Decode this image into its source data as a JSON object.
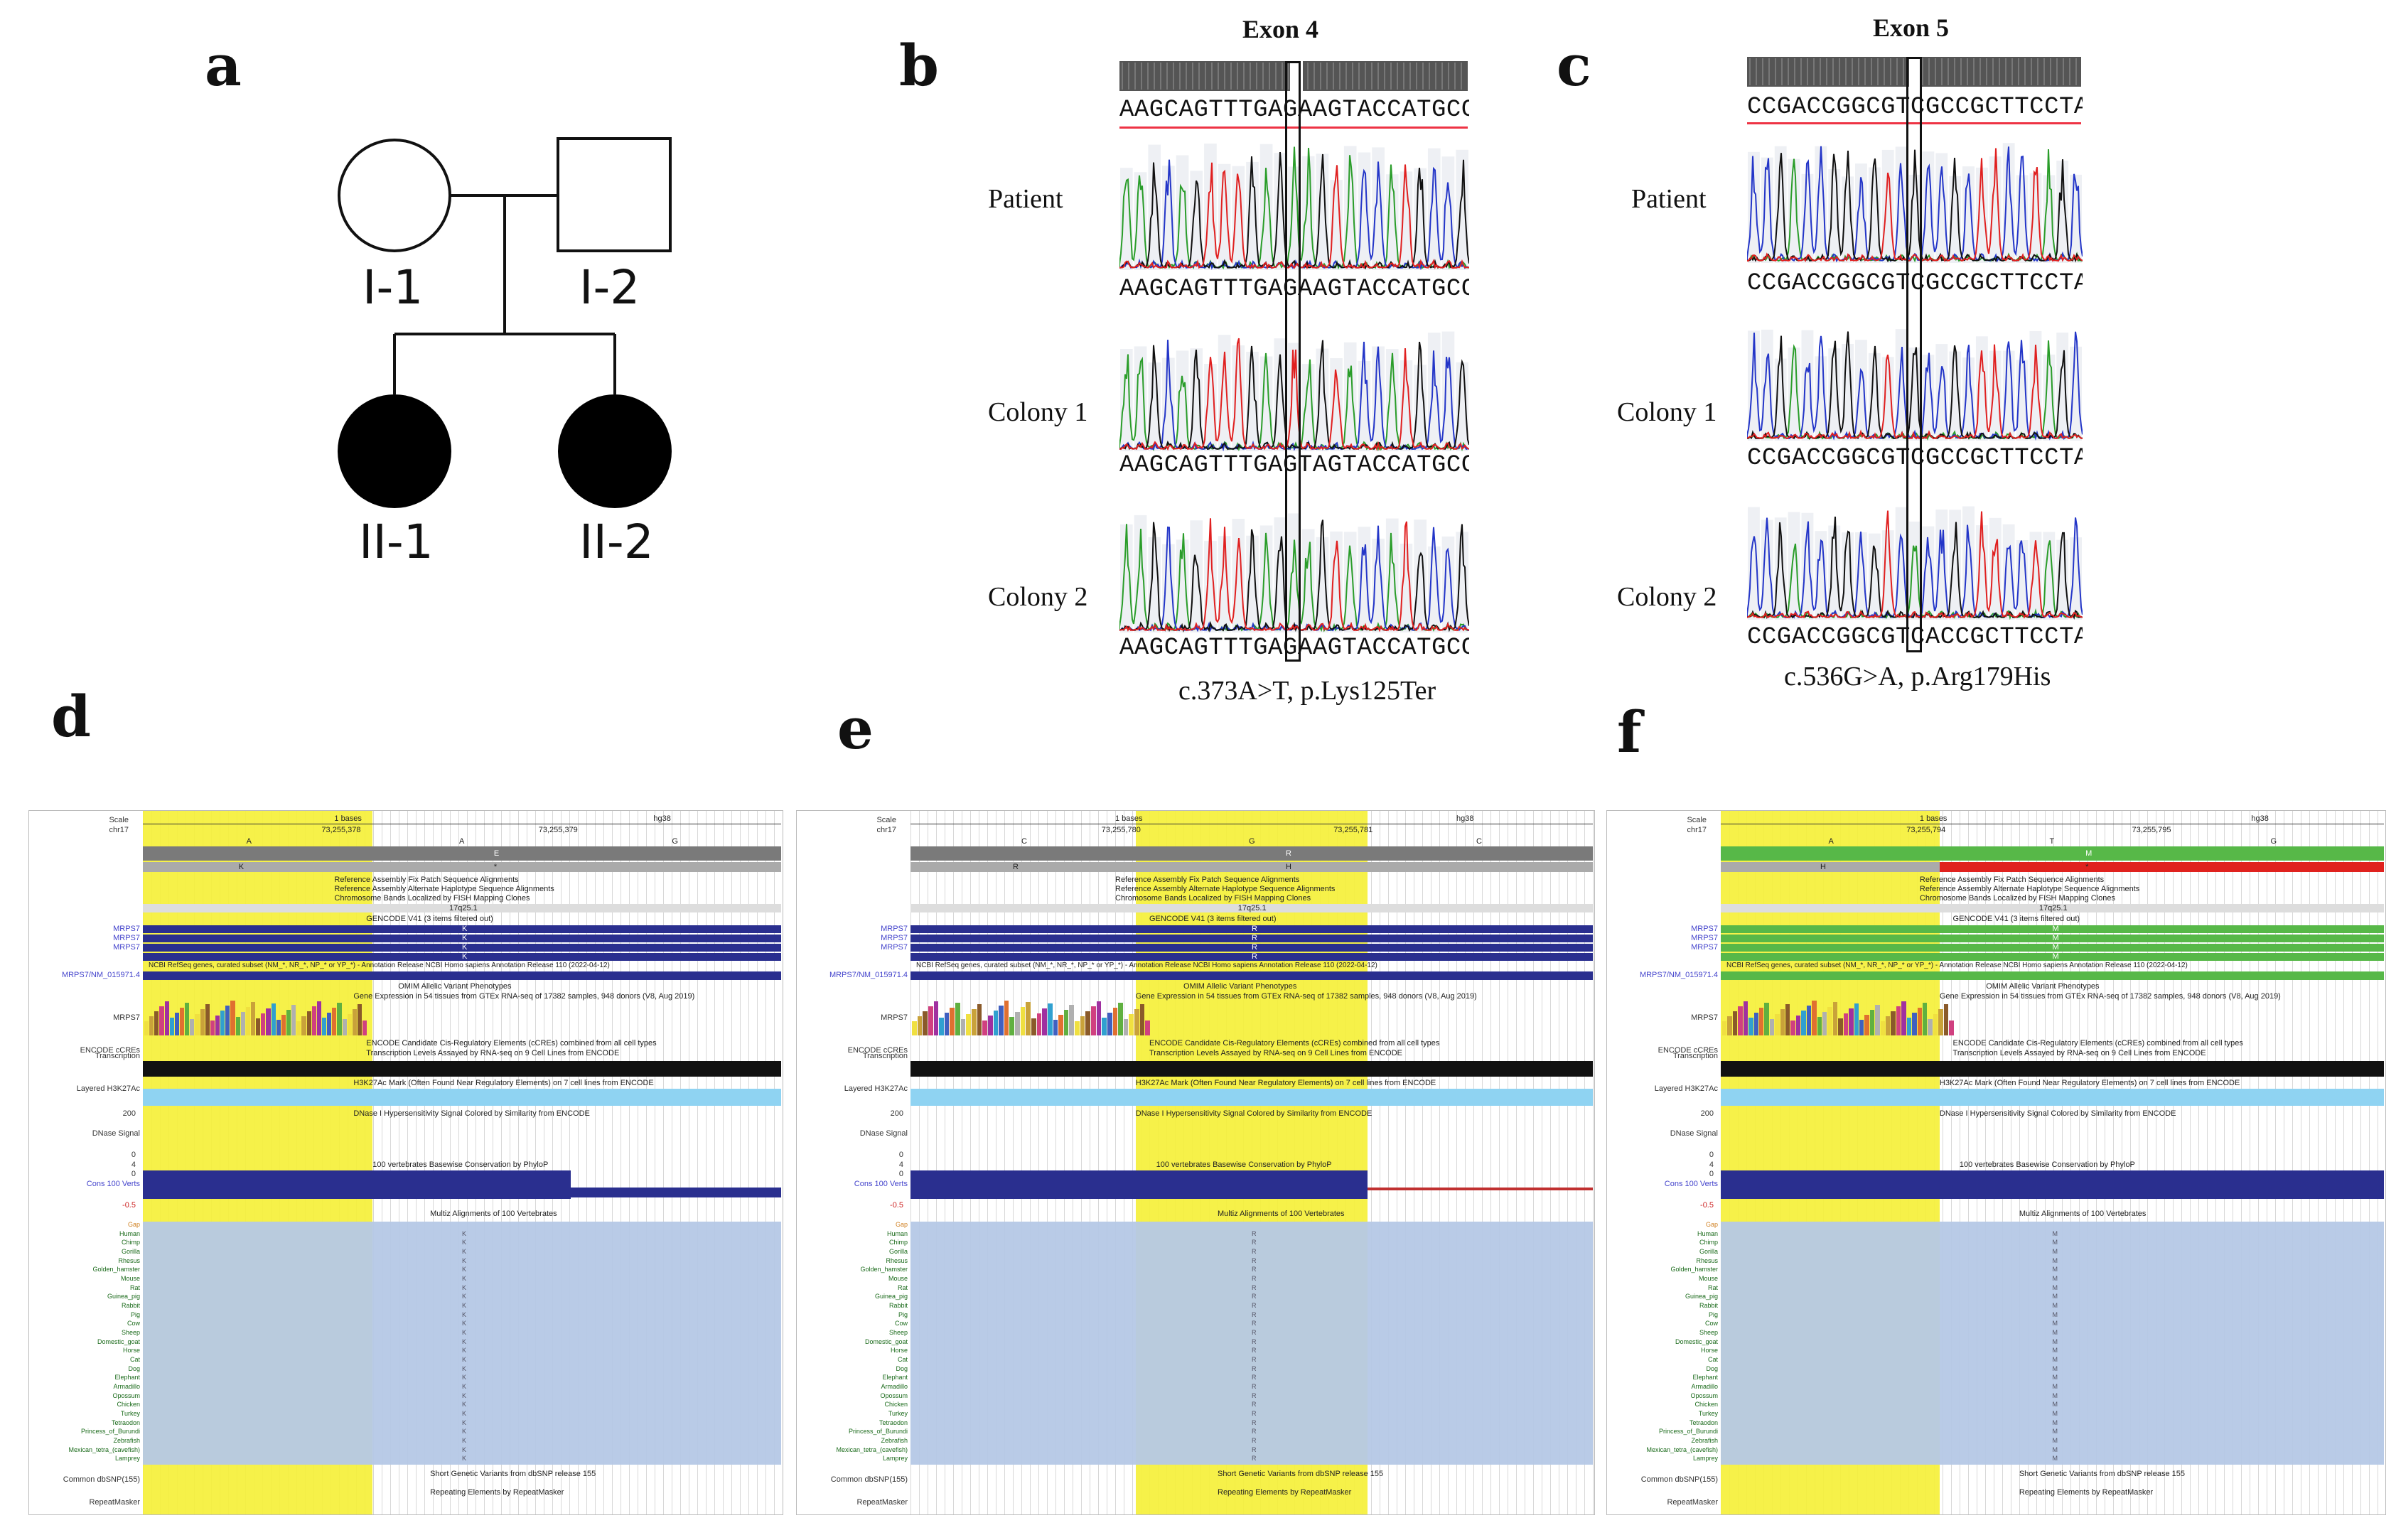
{
  "panels": {
    "a": "a",
    "b": "b",
    "c": "c",
    "d": "d",
    "e": "e",
    "f": "f"
  },
  "pedigree": {
    "i1": "I-1",
    "i2": "I-2",
    "ii1": "II-1",
    "ii2": "II-2"
  },
  "exon4": {
    "title": "Exon 4",
    "reference": "AAGCAGTTTGAGAAGTACCATGCCG",
    "patient_label": "Patient",
    "patient_seq": "AAGCAGTTTGAGAAGTACCATGCCG",
    "colony1_label": "Colony 1",
    "colony1_seq": "AAGCAGTTTGAGTAGTACCATGCCG",
    "colony2_label": "Colony 2",
    "colony2_seq": "AAGCAGTTTGAGAAGTACCATGCCG",
    "caption": "c.373A>T, p.Lys125Ter"
  },
  "exon5": {
    "title": "Exon 5",
    "reference": "CCGACCGGCGTCGCCGCTTCCTAGC",
    "patient_label": "Patient",
    "patient_seq": "CCGACCGGCGTCGCCGCTTCCTAGC",
    "colony1_label": "Colony 1",
    "colony1_seq": "CCGACCGGCGTCGCCGCTTCCTAGC",
    "colony2_label": "Colony 2",
    "colony2_seq": "CCGACCGGCGTCACCGCTTCCTAGC",
    "caption": "c.536G>A, p.Arg179His"
  },
  "browser": {
    "scale": "Scale",
    "chrom": "chr17",
    "assembly": "hg38",
    "bases": "1 bases",
    "pos_a": "73,255,378",
    "pos_b": "73,255,379",
    "pos_c": "73,255,780",
    "pos_d": "73,255,781",
    "pos_e": "73,255,794",
    "pos_f": "73,255,795",
    "band": "17q25.1",
    "tracks": {
      "ref_assembly": "Reference Assembly Fix Patch Sequence Alignments",
      "alt_haplo": "Reference Assembly Alternate Haplotype Sequence Alignments",
      "chrom_bands": "Chromosome Bands Localized by FISH Mapping Clones",
      "gencode": "GENCODE V41 (3 items filtered out)",
      "ncbi": "NCBI RefSeq genes, curated subset (NM_*, NR_*, NP_* or YP_*) - Annotation Release NCBI Homo sapiens Annotation Release 110 (2022-04-12)",
      "omim": "OMIM Allelic Variant Phenotypes",
      "gtex": "Gene Expression in 54 tissues from GTEx RNA-seq of 17382 samples, 948 donors (V8, Aug 2019)",
      "encode_cre": "ENCODE Candidate Cis-Regulatory Elements (cCREs) combined from all cell types",
      "transcription": "Transcription Levels Assayed by RNA-seq on 9 Cell Lines from ENCODE",
      "h3k27ac": "H3K27Ac Mark (Often Found Near Regulatory Elements) on 7 cell lines from ENCODE",
      "dnase": "DNase I Hypersensitivity Signal Colored by Similarity from ENCODE",
      "cons": "100 vertebrates Basewise Conservation by PhyloP",
      "multiz": "Multiz Alignments of 100 Vertebrates",
      "dbsnp": "Short Genetic Variants from dbSNP release 155",
      "repeat": "Repeating Elements by RepeatMasker"
    },
    "left_labels": {
      "gene": "MRPS7",
      "nm": "MRPS7/NM_015971.4",
      "encode": "ENCODE cCREs",
      "trans": "Transcription",
      "layered": "Layered H3K27Ac",
      "dnase": "DNase Signal",
      "cons": "Cons 100 Verts",
      "common": "Common dbSNP(155)",
      "repeat": "RepeatMasker",
      "dnase_max": "200",
      "dnase_min": "0",
      "cons_max": "4",
      "cons_zero": "0",
      "cons_min": "-0.5"
    },
    "species": [
      "Gap",
      "Human",
      "Chimp",
      "Gorilla",
      "Rhesus",
      "Golden_hamster",
      "Mouse",
      "Rat",
      "Guinea_pig",
      "Rabbit",
      "Pig",
      "Cow",
      "Sheep",
      "Domestic_goat",
      "Horse",
      "Cat",
      "Dog",
      "Elephant",
      "Armadillo",
      "Opossum",
      "Chicken",
      "Turkey",
      "Tetraodon",
      "Princess_of_Burundi",
      "Zebrafish",
      "Mexican_tetra_(cavefish)",
      "Lamprey"
    ],
    "d": {
      "bases": [
        "A",
        "A",
        "G"
      ],
      "aa_top": "E",
      "aa_ref": "K",
      "aa_mut": "*",
      "res": "K"
    },
    "e": {
      "bases": [
        "C",
        "G",
        "C"
      ],
      "aa_top": "R",
      "aa_ref": "R",
      "aa_mut": "H",
      "res": "R"
    },
    "f": {
      "bases": [
        "A",
        "T",
        "G"
      ],
      "aa_top": "M",
      "aa_ref": "H",
      "aa_mut": "*",
      "res": "M"
    }
  },
  "colors": {
    "yellow": "#f5f03a",
    "navy": "#2a2f8f",
    "sky": "#8fd3f2",
    "align_blue": "#b5c8e6",
    "green": "#57b848",
    "red": "#e0221e",
    "dark": "#111111"
  }
}
